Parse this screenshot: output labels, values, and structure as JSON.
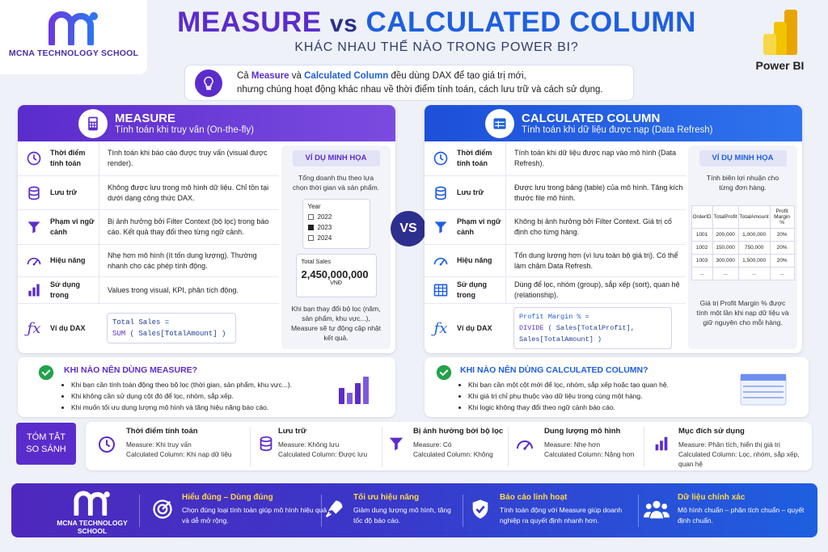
{
  "school": {
    "name": "MCNA TECHNOLOGY SCHOOL"
  },
  "title": {
    "measure": "MEASURE",
    "vs": "vs",
    "calc": "CALCULATED COLUMN",
    "subtitle": "KHÁC NHAU THẾ NÀO TRONG POWER BI?"
  },
  "powerbi": {
    "label": "Power BI"
  },
  "intro": {
    "p1": "Cả ",
    "measure": "Measure",
    "p2": " và ",
    "calc": "Calculated Column",
    "p3": " đều dùng DAX để tạo giá trị mới,",
    "line2": "nhưng chúng hoạt động khác nhau về thời điểm tính toán, cách lưu trữ và cách sử dụng."
  },
  "vs_badge": "VS",
  "measure": {
    "title": "MEASURE",
    "subtitle": "Tính toán khi truy vấn (On-the-fly)",
    "rows": [
      {
        "icon": "clock-icon",
        "label": "Thời điểm tính toán",
        "text": "Tính toán khi báo cáo được truy vấn (visual được render)."
      },
      {
        "icon": "database-icon",
        "label": "Lưu trữ",
        "text": "Không được lưu trong mô hình dữ liệu. Chỉ tồn tại dưới dạng công thức DAX."
      },
      {
        "icon": "filter-icon",
        "label": "Phạm vi ngữ cảnh",
        "text": "Bị ảnh hưởng bởi Filter Context (bộ lọc) trong báo cáo. Kết quả thay đổi theo từng ngữ cảnh."
      },
      {
        "icon": "gauge-icon",
        "label": "Hiệu năng",
        "text": "Nhẹ hơn mô hình (ít tốn dung lượng). Thường nhanh cho các phép tính động."
      },
      {
        "icon": "bar-chart-icon",
        "label": "Sử dụng trong",
        "text": "Values trong visual, KPI, phân tích động."
      }
    ],
    "dax_label": "Ví dụ DAX",
    "dax_line1": "Total Sales =",
    "dax_fn": "SUM",
    "dax_line2": " ( Sales[TotalAmount] )",
    "example": {
      "title": "VÍ DỤ MINH HỌA",
      "desc": "Tổng doanh thu theo lựa chọn thời gian và sản phẩm.",
      "year_label": "Year",
      "years": [
        "2022",
        "2023",
        "2024"
      ],
      "selected_year": "2023",
      "card_label": "Total Sales",
      "card_value": "2,450,000,000",
      "card_unit": "VNĐ",
      "note": "Khi bạn thay đổi bộ lọc (năm, sản phẩm, khu vực...), Measure sẽ tự động cập nhật kết quả."
    },
    "when": {
      "title": "KHI NÀO NÊN DÙNG MEASURE?",
      "items": [
        "Khi bạn cần tính toán động theo bộ lọc (thời gian, sản phẩm, khu vực...).",
        "Khi không cần sử dụng cột đó để lọc, nhóm, sắp xếp.",
        "Khi muốn tối ưu dung lượng mô hình và tăng hiệu năng báo cáo."
      ]
    }
  },
  "calc": {
    "title": "CALCULATED COLUMN",
    "subtitle": "Tính toán khi dữ liệu được nạp (Data Refresh)",
    "rows": [
      {
        "icon": "clock-icon",
        "label": "Thời điểm tính toán",
        "text": "Tính toán khi dữ liệu được nạp vào mô hình (Data Refresh)."
      },
      {
        "icon": "database-icon",
        "label": "Lưu trữ",
        "text": "Được lưu trong bảng (table) của mô hình. Tăng kích thước file mô hình."
      },
      {
        "icon": "filter-icon",
        "label": "Phạm vi ngữ cảnh",
        "text": "Không bị ảnh hưởng bởi Filter Context. Giá trị cố định cho từng hàng."
      },
      {
        "icon": "gauge-icon",
        "label": "Hiệu năng",
        "text": "Tốn dung lượng hơn (vì lưu toàn bộ giá trị). Có thể làm chậm Data Refresh."
      },
      {
        "icon": "table-icon",
        "label": "Sử dụng trong",
        "text": "Dùng để lọc, nhóm (group), sắp xếp (sort), quan hệ (relationship)."
      }
    ],
    "dax_label": "Ví dụ DAX",
    "dax_line1": "Profit Margin % =",
    "dax_fn": "DIVIDE",
    "dax_line2": " ( Sales[TotalProfit], Sales[TotalAmount] )",
    "example": {
      "title": "VÍ DỤ MINH HỌA",
      "desc": "Tính biên lợi nhuận cho từng đơn hàng.",
      "headers": [
        "OrderID",
        "TotalProfit",
        "TotalAmount",
        "Profit Margin %"
      ],
      "rows": [
        [
          "1001",
          "200,000",
          "1,000,000",
          "20%"
        ],
        [
          "1002",
          "150,000",
          "750,000",
          "20%"
        ],
        [
          "1003",
          "300,000",
          "1,500,000",
          "20%"
        ],
        [
          "...",
          "...",
          "...",
          "..."
        ]
      ],
      "note": "Giá trị Profit Margin % được tính một lần khi nạp dữ liệu và giữ nguyên cho mỗi hàng."
    },
    "when": {
      "title": "KHI NÀO NÊN DÙNG CALCULATED COLUMN?",
      "items": [
        "Khi bạn cần một cột mới để lọc, nhóm, sắp xếp hoặc tạo quan hệ.",
        "Khi giá trị chỉ phụ thuộc vào dữ liệu trong cùng một hàng.",
        "Khi logic không thay đổi theo ngữ cảnh báo cáo."
      ]
    }
  },
  "summary": {
    "label_line1": "TÓM TẮT",
    "label_line2": "SO SÁNH",
    "items": [
      {
        "icon": "clock-icon",
        "title": "Thời điểm tính toán",
        "measure": "Measure: Khi truy vấn",
        "calc": "Calculated Column: Khi nạp dữ liệu"
      },
      {
        "icon": "database-icon",
        "title": "Lưu trữ",
        "measure": "Measure: Không lưu",
        "calc": "Calculated Column: Được lưu"
      },
      {
        "icon": "filter-icon",
        "title": "Bị ảnh hưởng bởi bộ lọc",
        "measure": "Measure: Có",
        "calc": "Calculated Column: Không"
      },
      {
        "icon": "gauge-icon",
        "title": "Dung lượng mô hình",
        "measure": "Measure: Nhẹ hơn",
        "calc": "Calculated Column: Nặng hơn"
      },
      {
        "icon": "bar-chart-icon",
        "title": "Mục đích sử dụng",
        "measure": "Measure: Phân tích, hiển thị giá trị",
        "calc": "Calculated Column: Lọc, nhóm, sắp xếp, quan hệ"
      }
    ]
  },
  "footer": {
    "items": [
      {
        "icon": "target-icon",
        "title": "Hiểu đúng – Dùng đúng",
        "text": "Chọn đúng loại tính toán giúp mô hình hiệu quả và dễ mở rộng."
      },
      {
        "icon": "rocket-icon",
        "title": "Tối ưu hiệu năng",
        "text": "Giảm dung lượng mô hình, tăng tốc độ báo cáo."
      },
      {
        "icon": "shield-check-icon",
        "title": "Báo cáo linh hoạt",
        "text": "Tính toán động với Measure giúp doanh nghiệp ra quyết định nhanh hơn."
      },
      {
        "icon": "users-icon",
        "title": "Dữ liệu chính xác",
        "text": "Mô hình chuẩn – phân tích chuẩn – quyết định chuẩn."
      }
    ]
  },
  "colors": {
    "measure": "#5b2ccc",
    "calc": "#1e5fe0",
    "check": "#22a34a",
    "footer_title": "#ffd84a"
  }
}
